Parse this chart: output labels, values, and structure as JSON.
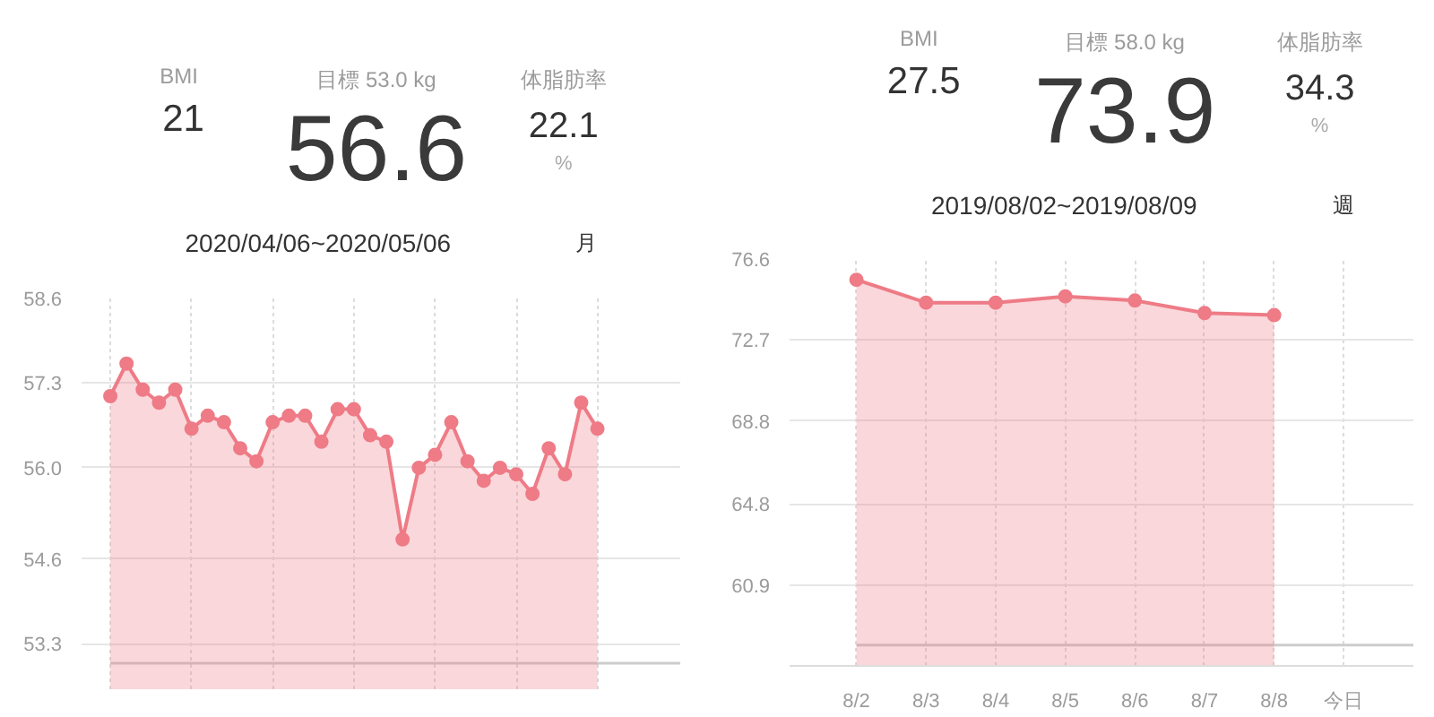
{
  "chart_data": [
    {
      "type": "other",
      "annotations": [
        "BMI",
        "21",
        "目標 53.0 kg",
        "56.6",
        "体脂肪率",
        "22.1",
        "%",
        "2020/04/06~2020/05/06",
        "月"
      ]
    },
    {
      "type": "area",
      "categories": [
        null,
        null,
        null,
        null,
        null,
        null,
        null,
        null,
        null,
        null,
        null,
        null,
        null,
        null,
        null,
        null,
        null,
        null,
        null,
        null,
        null,
        null,
        null,
        null,
        null,
        null,
        null,
        null,
        null,
        null,
        null
      ],
      "values": [
        57.1,
        57.6,
        57.2,
        57.0,
        57.2,
        56.6,
        56.8,
        56.7,
        56.3,
        56.1,
        56.7,
        56.8,
        56.8,
        56.4,
        56.9,
        56.9,
        56.5,
        56.4,
        54.9,
        56.0,
        56.2,
        56.7,
        56.1,
        55.8,
        56.0,
        55.9,
        55.6,
        56.3,
        55.9,
        57.0,
        56.6
      ],
      "color": "#ee7b86",
      "marker": "circle",
      "ylim": [
        52.6,
        58.6
      ],
      "yticks": [
        58.6,
        57.3,
        {
          "value": 56,
          "label": "56.0"
        },
        54.6,
        53.3
      ],
      "grid": true,
      "tick_labels": "y",
      "ref_lines": [
        {
          "axis": "y",
          "value": 53,
          "color": "#cccccc"
        }
      ]
    },
    {
      "type": "other",
      "annotations": [
        "BMI",
        "27.5",
        "目標 58.0 kg",
        "73.9",
        "体脂肪率",
        "34.3",
        "%",
        "2019/08/02~2019/08/09",
        "週"
      ]
    },
    {
      "type": "area",
      "categories": [
        "8/2",
        "8/3",
        "8/4",
        "8/5",
        "8/6",
        "8/7",
        "8/8",
        "今日"
      ],
      "values": [
        75.6,
        74.5,
        74.5,
        74.8,
        74.6,
        74.0,
        73.9,
        null
      ],
      "color": "#ee7b86",
      "marker": "circle",
      "ylim": [
        57,
        76.6
      ],
      "yticks": [
        76.6,
        72.7,
        68.8,
        64.8,
        60.9
      ],
      "grid": true,
      "ref_lines": [
        {
          "axis": "y",
          "value": 58,
          "color": "#cccccc"
        }
      ]
    }
  ]
}
